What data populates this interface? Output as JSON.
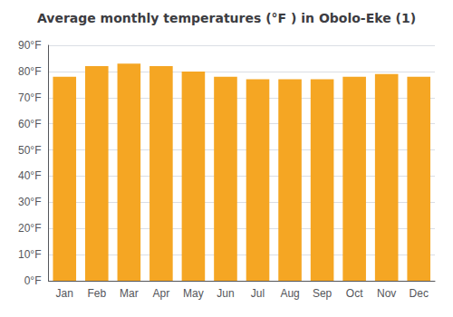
{
  "chart_data": {
    "type": "bar",
    "title": "Average monthly temperatures (°F ) in Obolo-Eke (1)",
    "categories": [
      "Jan",
      "Feb",
      "Mar",
      "Apr",
      "May",
      "Jun",
      "Jul",
      "Aug",
      "Sep",
      "Oct",
      "Nov",
      "Dec"
    ],
    "values": [
      78,
      82,
      83,
      82,
      80,
      78,
      77,
      77,
      77,
      78,
      79,
      78
    ],
    "color": "#F5A623",
    "ylim": [
      0,
      90
    ],
    "yticks": [
      {
        "value": 0,
        "label": "0°F"
      },
      {
        "value": 10,
        "label": "10°F"
      },
      {
        "value": 20,
        "label": "20°F"
      },
      {
        "value": 30,
        "label": "30°F"
      },
      {
        "value": 40,
        "label": "40°F"
      },
      {
        "value": 50,
        "label": "50°F"
      },
      {
        "value": 60,
        "label": "60°F"
      },
      {
        "value": 70,
        "label": "70°F"
      },
      {
        "value": 80,
        "label": "80°F"
      },
      {
        "value": 90,
        "label": "90°F"
      }
    ],
    "grid": true
  }
}
